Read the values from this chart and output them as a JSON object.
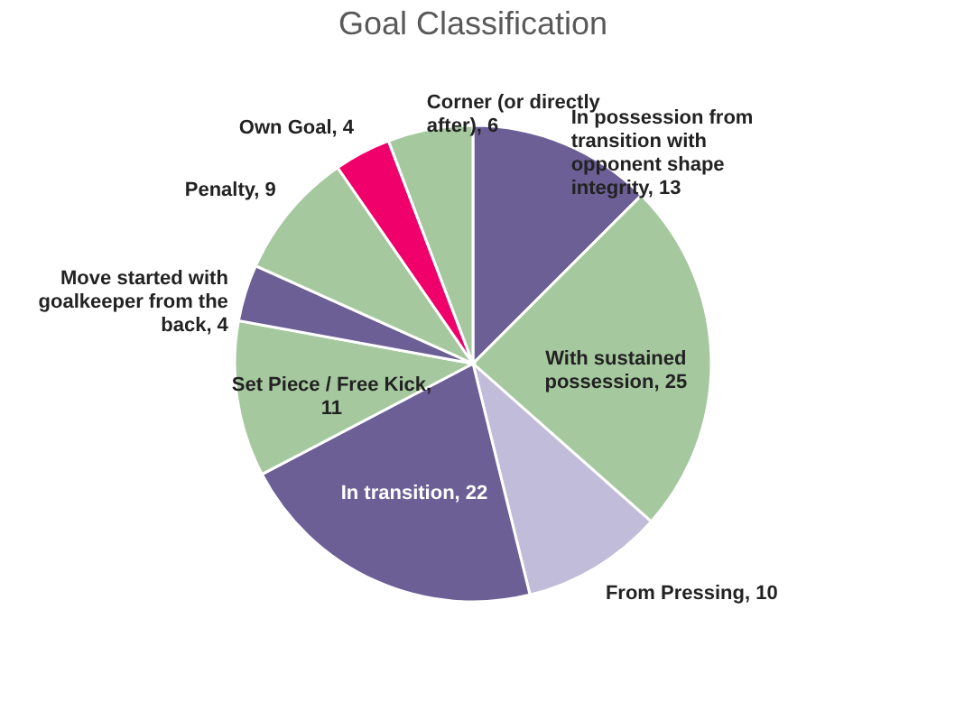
{
  "chart_data": {
    "type": "pie",
    "title": "Goal Classification",
    "categories": [
      null,
      null,
      null,
      null,
      null,
      null,
      null,
      null,
      null
    ],
    "values": [
      13,
      25,
      10,
      22,
      11,
      4,
      9,
      4,
      6
    ],
    "value_labels": [
      "In possession from transition with opponent shape integrity, 13",
      "With sustained possession, 25",
      "From Pressing, 10",
      "In transition, 22",
      "Set Piece / Free Kick, 11",
      "Move started with goalkeeper from the back, 4",
      "Penalty, 9",
      "Own Goal, 4",
      "Corner (or directly after), 6"
    ],
    "colors": [
      "#6b5f96",
      "#a5c89f",
      "#c0bcd9",
      "#6b5f96",
      "#a5c89f",
      "#6b5f96",
      "#a5c89f",
      "#f0006a",
      "#a5c89f"
    ],
    "legend": false
  }
}
